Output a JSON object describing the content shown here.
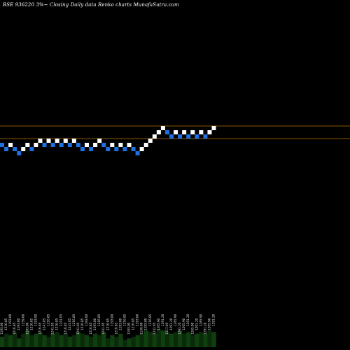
{
  "title": "BSE 936220  3%~  Closing Daily data  Renko  charts MunafaSutra.com",
  "chart_data": {
    "type": "renko",
    "title": "BSE 936220  3%~  Closing Daily data  Renko  charts MunafaSutra.com",
    "brick_size_pct": 3,
    "bricks": [
      {
        "dir": "down",
        "level": 0
      },
      {
        "dir": "down",
        "level": -1
      },
      {
        "dir": "up",
        "level": 0
      },
      {
        "dir": "down",
        "level": -1
      },
      {
        "dir": "down",
        "level": -2
      },
      {
        "dir": "up",
        "level": -1
      },
      {
        "dir": "up",
        "level": 0
      },
      {
        "dir": "down",
        "level": -1
      },
      {
        "dir": "up",
        "level": 0
      },
      {
        "dir": "up",
        "level": 1
      },
      {
        "dir": "down",
        "level": 0
      },
      {
        "dir": "up",
        "level": 1
      },
      {
        "dir": "down",
        "level": 0
      },
      {
        "dir": "up",
        "level": 1
      },
      {
        "dir": "down",
        "level": 0
      },
      {
        "dir": "up",
        "level": 1
      },
      {
        "dir": "down",
        "level": 0
      },
      {
        "dir": "up",
        "level": 1
      },
      {
        "dir": "down",
        "level": 0
      },
      {
        "dir": "down",
        "level": -1
      },
      {
        "dir": "up",
        "level": 0
      },
      {
        "dir": "down",
        "level": -1
      },
      {
        "dir": "up",
        "level": 0
      },
      {
        "dir": "up",
        "level": 1
      },
      {
        "dir": "down",
        "level": 0
      },
      {
        "dir": "down",
        "level": -1
      },
      {
        "dir": "up",
        "level": 0
      },
      {
        "dir": "down",
        "level": -1
      },
      {
        "dir": "up",
        "level": 0
      },
      {
        "dir": "down",
        "level": -1
      },
      {
        "dir": "up",
        "level": 0
      },
      {
        "dir": "down",
        "level": -1
      },
      {
        "dir": "down",
        "level": -2
      },
      {
        "dir": "up",
        "level": -1
      },
      {
        "dir": "up",
        "level": 0
      },
      {
        "dir": "up",
        "level": 1
      },
      {
        "dir": "up",
        "level": 2
      },
      {
        "dir": "up",
        "level": 3
      },
      {
        "dir": "up",
        "level": 4
      },
      {
        "dir": "down",
        "level": 3
      },
      {
        "dir": "down",
        "level": 2
      },
      {
        "dir": "up",
        "level": 3
      },
      {
        "dir": "down",
        "level": 2
      },
      {
        "dir": "up",
        "level": 3
      },
      {
        "dir": "down",
        "level": 2
      },
      {
        "dir": "up",
        "level": 3
      },
      {
        "dir": "down",
        "level": 2
      },
      {
        "dir": "up",
        "level": 3
      },
      {
        "dir": "down",
        "level": 2
      },
      {
        "dir": "up",
        "level": 3
      },
      {
        "dir": "up",
        "level": 4
      }
    ],
    "reference_lines": [
      {
        "name": "upper-band",
        "color": "#b8730a"
      },
      {
        "name": "lower-band",
        "color": "#b8730a"
      }
    ],
    "brick_labels": [
      "1193.00",
      "1216.85",
      "1193.00",
      "1216.85",
      "1193.00",
      "1159.00",
      "1193.00",
      "1216.85",
      "1193.00",
      "1216.85",
      "1241.05",
      "1216.85",
      "1241.05",
      "1216.85",
      "1241.05",
      "1216.85",
      "1241.05",
      "1216.85",
      "1241.05",
      "1216.85",
      "1193.00",
      "1216.85",
      "1193.00",
      "1216.85",
      "1241.05",
      "1216.85",
      "1193.00",
      "1216.85",
      "1193.00",
      "1216.85",
      "1193.00",
      "1216.85",
      "1193.00",
      "1159.00",
      "1193.00",
      "1216.85",
      "1241.05",
      "1265.90",
      "1291.20",
      "1317.05",
      "1291.20",
      "1265.90",
      "1291.20",
      "1265.90",
      "1291.20",
      "1265.90",
      "1291.20",
      "1265.90",
      "1291.20",
      "1265.90",
      "1291.20"
    ],
    "volume": [
      4,
      6,
      5,
      7,
      3,
      6,
      8,
      5,
      6,
      7,
      5,
      4,
      6,
      7,
      5,
      6,
      4,
      5,
      7,
      6,
      5,
      4,
      6,
      5,
      7,
      3,
      5,
      4,
      6,
      2,
      3,
      4,
      5,
      6,
      8,
      7,
      6,
      9,
      8,
      7,
      6,
      7,
      8,
      6,
      7,
      5,
      6,
      7,
      6,
      8,
      7
    ],
    "colors": {
      "up": "#ffffff",
      "down": "#1e6fe0",
      "volume": "#0a2a0a",
      "volume_edge": "#0f3f0f",
      "label": "#e0e0e0"
    }
  }
}
